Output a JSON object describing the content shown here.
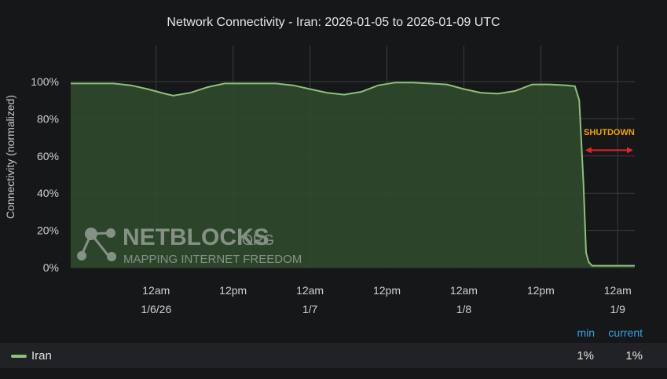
{
  "chart_data": {
    "type": "area",
    "title": "Network Connectivity - Iran: 2026-01-05 to 2026-01-09 UTC",
    "ylabel": "Connectivity (normalized)",
    "xlabel": "",
    "ylim": [
      0,
      100
    ],
    "xlim_hours": [
      -10,
      56
    ],
    "yticks": [
      "0%",
      "20%",
      "40%",
      "60%",
      "80%",
      "100%"
    ],
    "ytick_values": [
      0,
      20,
      40,
      60,
      80,
      100
    ],
    "xticks": [
      {
        "hour": 0,
        "line1": "12am",
        "line2": "1/6/26"
      },
      {
        "hour": 9,
        "line1": "12pm",
        "line2": ""
      },
      {
        "hour": 18,
        "line1": "12am",
        "line2": "1/7"
      },
      {
        "hour": 27,
        "line1": "12pm",
        "line2": ""
      },
      {
        "hour": 36,
        "line1": "12am",
        "line2": "1/8"
      },
      {
        "hour": 45,
        "line1": "12pm",
        "line2": ""
      },
      {
        "hour": 54,
        "line1": "12am",
        "line2": "1/9"
      }
    ],
    "grid": true,
    "series": [
      {
        "name": "Iran",
        "color": "#8fbf7a",
        "x_hours": [
          -10,
          -5,
          -3,
          -1,
          1,
          2,
          4,
          6,
          8,
          10,
          14,
          16,
          18,
          20,
          22,
          24,
          26,
          28,
          30,
          32,
          34,
          36,
          38,
          40,
          42,
          44,
          46,
          48,
          49,
          49.5,
          50,
          50.3,
          50.6,
          51,
          52,
          54,
          56
        ],
        "values": [
          99,
          99,
          98,
          96,
          93.5,
          92.5,
          94,
          97,
          99,
          99,
          99,
          98,
          96,
          94,
          93,
          94.5,
          98,
          99.5,
          99.5,
          99,
          98.5,
          96,
          94,
          93.5,
          95,
          98.5,
          98.5,
          98,
          97.5,
          90,
          45,
          8,
          3,
          1,
          1,
          1,
          1
        ]
      }
    ],
    "annotations": [
      {
        "text": "SHUTDOWN",
        "color": "#f2a100",
        "arrow_color": "#e0242b",
        "x_from": 50.2,
        "x_to": 56,
        "y": 64
      }
    ]
  },
  "watermark": {
    "brand": "NETBLOCKS",
    "brand_suffix": ".ORG",
    "tagline": "MAPPING INTERNET FREEDOM"
  },
  "legend": {
    "min_header": "min",
    "current_header": "current",
    "series_name": "Iran",
    "min_value": "1%",
    "current_value": "1%",
    "header_color": "#33a2e5"
  }
}
